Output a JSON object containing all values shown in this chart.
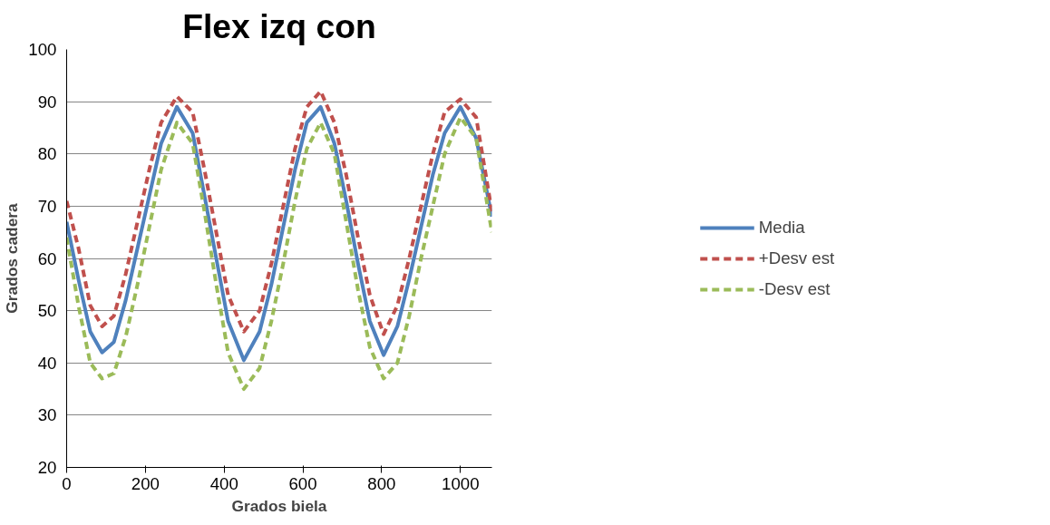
{
  "chart_data": {
    "type": "line",
    "title": "Flex izq con",
    "xlabel": "Grados biela",
    "ylabel": "Grados cadera",
    "x": [
      0,
      30,
      60,
      90,
      120,
      150,
      180,
      210,
      240,
      280,
      320,
      350,
      380,
      410,
      450,
      490,
      520,
      550,
      580,
      610,
      645,
      680,
      710,
      740,
      770,
      805,
      840,
      870,
      900,
      930,
      960,
      1000,
      1040,
      1080
    ],
    "series": [
      {
        "name": "Media",
        "color": "#4f81bd",
        "line_style": "solid",
        "values": [
          67,
          56,
          46,
          42,
          44,
          52,
          62,
          72,
          82,
          89,
          84,
          72,
          60,
          48,
          40.5,
          46,
          55,
          66,
          77,
          86,
          89,
          82,
          71,
          59,
          48,
          41.5,
          47,
          56,
          66,
          76,
          84,
          89,
          83,
          68
        ]
      },
      {
        "name": "+Desv est",
        "color": "#c0504d",
        "line_style": "dashed",
        "values": [
          71,
          62,
          51,
          47,
          49,
          57,
          67,
          77,
          86,
          91,
          88,
          77,
          65,
          53,
          46,
          50,
          59,
          70,
          81,
          89,
          92,
          86,
          76,
          64,
          53,
          45.5,
          51,
          60,
          70,
          80,
          88,
          90.5,
          87,
          69
        ]
      },
      {
        "name": "-Desv est",
        "color": "#9bbb59",
        "line_style": "dashed",
        "values": [
          64,
          51,
          40,
          37,
          38,
          45,
          55,
          66,
          77,
          86,
          82,
          69,
          55,
          42,
          35,
          39,
          48,
          59,
          71,
          81,
          86,
          80,
          67,
          54,
          43,
          37,
          40,
          49,
          60,
          70,
          80,
          87,
          83,
          65
        ]
      }
    ],
    "xlim": [
      0,
      1080
    ],
    "xticks": [
      0,
      200,
      400,
      600,
      800,
      1000
    ],
    "ylim": [
      20,
      100
    ],
    "yticks": [
      20,
      30,
      40,
      50,
      60,
      70,
      80,
      90,
      100
    ],
    "grid": "y",
    "legend": "right",
    "marker": "none"
  }
}
